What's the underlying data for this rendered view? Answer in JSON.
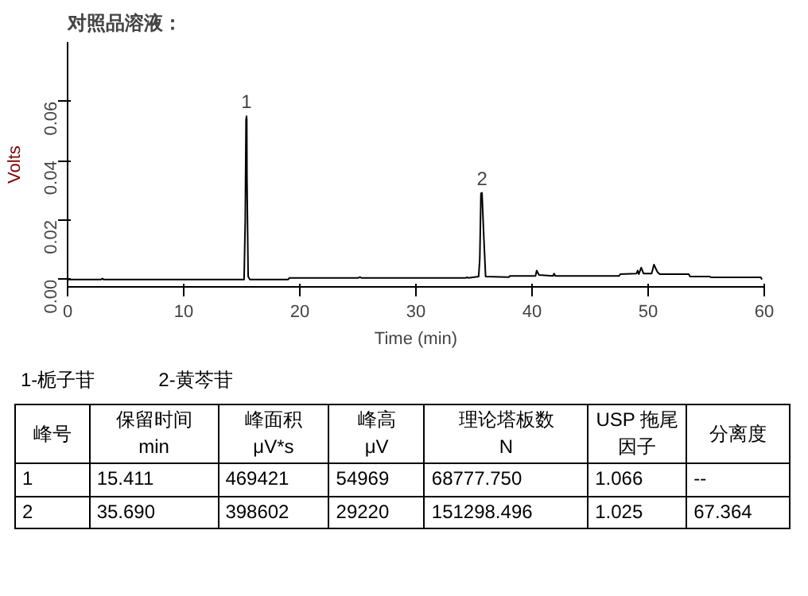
{
  "chart_data": {
    "type": "line",
    "title": "对照品溶液：",
    "xlabel": "Time (min)",
    "ylabel": "Volts",
    "x": [
      0,
      2.9,
      3.0,
      3.1,
      15.2,
      15.3,
      15.37,
      15.41,
      15.43,
      15.45,
      15.55,
      15.7,
      19,
      19.1,
      25,
      25.2,
      25.3,
      34.3,
      34.4,
      34.5,
      35.4,
      35.5,
      35.6,
      35.69,
      35.85,
      36,
      38,
      38.1,
      40.3,
      40.4,
      40.6,
      41.8,
      41.9,
      42,
      47.5,
      47.6,
      49,
      49.1,
      49.2,
      49.4,
      49.6,
      50.3,
      50.5,
      50.8,
      51,
      53.5,
      53.6,
      55.3,
      55.4,
      59.7,
      59.8
    ],
    "series": [
      {
        "color": "#000000",
        "values": [
          0,
          0,
          0.0003,
          0,
          0,
          0.02,
          0.054,
          0.055,
          0.054,
          0.034,
          0.001,
          0,
          0,
          0.0005,
          0.0005,
          0.0008,
          0.0005,
          0.0005,
          0.0008,
          0.0005,
          0.001,
          0.007,
          0.029,
          0.0292,
          0.014,
          0.001,
          0.0008,
          0.0012,
          0.0012,
          0.003,
          0.0015,
          0.0012,
          0.002,
          0.0012,
          0.0012,
          0.0018,
          0.002,
          0.003,
          0.0018,
          0.004,
          0.002,
          0.002,
          0.005,
          0.0025,
          0.0018,
          0.0018,
          0.001,
          0.001,
          0.0007,
          0.0007,
          0
        ]
      }
    ],
    "xlim": [
      0,
      60
    ],
    "xticks": [
      0,
      10,
      20,
      30,
      40,
      50,
      60
    ],
    "ylim": [
      -0.0025,
      0.08
    ],
    "yticks": [
      {
        "value": 0,
        "label": "0.00"
      },
      {
        "value": 0.02,
        "label": "0.02"
      },
      {
        "value": 0.04,
        "label": "0.04"
      },
      {
        "value": 0.06,
        "label": "0.06"
      }
    ],
    "grid": false,
    "marker": "none",
    "line_style": "solid",
    "annotations": [
      {
        "text": "1",
        "x": 15.41,
        "y": 0.055
      },
      {
        "text": "2",
        "x": 35.69,
        "y": 0.0292
      },
      "1-栀子苷",
      "2-黄芩苷",
      "峰号",
      "保留时间\nmin",
      "峰面积\nμV*s",
      "峰高\nμV",
      "理论塔板数\nN",
      "USP 拖尾因子",
      "分离度",
      "1",
      "15.411",
      "469421",
      "54969",
      "68777.750",
      "1.066",
      "--",
      "2",
      "35.690",
      "398602",
      "29220",
      "151298.496",
      "1.025",
      "67.364"
    ]
  }
}
